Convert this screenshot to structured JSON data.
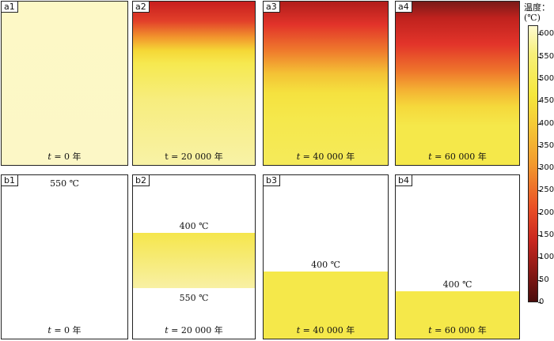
{
  "panels_top": [
    {
      "tag": "a1",
      "t_prefix": "t",
      "t_suffix": " = 0 年"
    },
    {
      "tag": "a2",
      "t_prefix": "",
      "t_suffix": "t = 20 000 年"
    },
    {
      "tag": "a3",
      "t_prefix": "t",
      "t_suffix": " = 40 000 年"
    },
    {
      "tag": "a4",
      "t_prefix": "t",
      "t_suffix": " = 60 000 年"
    }
  ],
  "panels_bottom": [
    {
      "tag": "b1",
      "t_prefix": "t",
      "t_suffix": " = 0 年",
      "iso_upper": "550 ℃"
    },
    {
      "tag": "b2",
      "t_prefix": "t",
      "t_suffix": " = 20 000 年",
      "iso_upper": "400 ℃",
      "iso_lower": "550 ℃"
    },
    {
      "tag": "b3",
      "t_prefix": "t",
      "t_suffix": " = 40 000 年",
      "iso_upper": "400 ℃"
    },
    {
      "tag": "b4",
      "t_prefix": "t",
      "t_suffix": " = 60 000 年",
      "iso_upper": "400 ℃"
    }
  ],
  "colorbar": {
    "title_line1": "温度：",
    "title_line2": "(℃)",
    "min": 0,
    "max": 620,
    "ticks": [
      "0",
      "50",
      "100",
      "150",
      "200",
      "250",
      "300",
      "350",
      "400",
      "450",
      "500",
      "550",
      "600"
    ]
  },
  "colors": {
    "pale": "#fdf8c6",
    "yellow": "#f5e84a",
    "orange": "#f29a2e",
    "red": "#e3302a",
    "dark_red": "#7a1a18"
  }
}
